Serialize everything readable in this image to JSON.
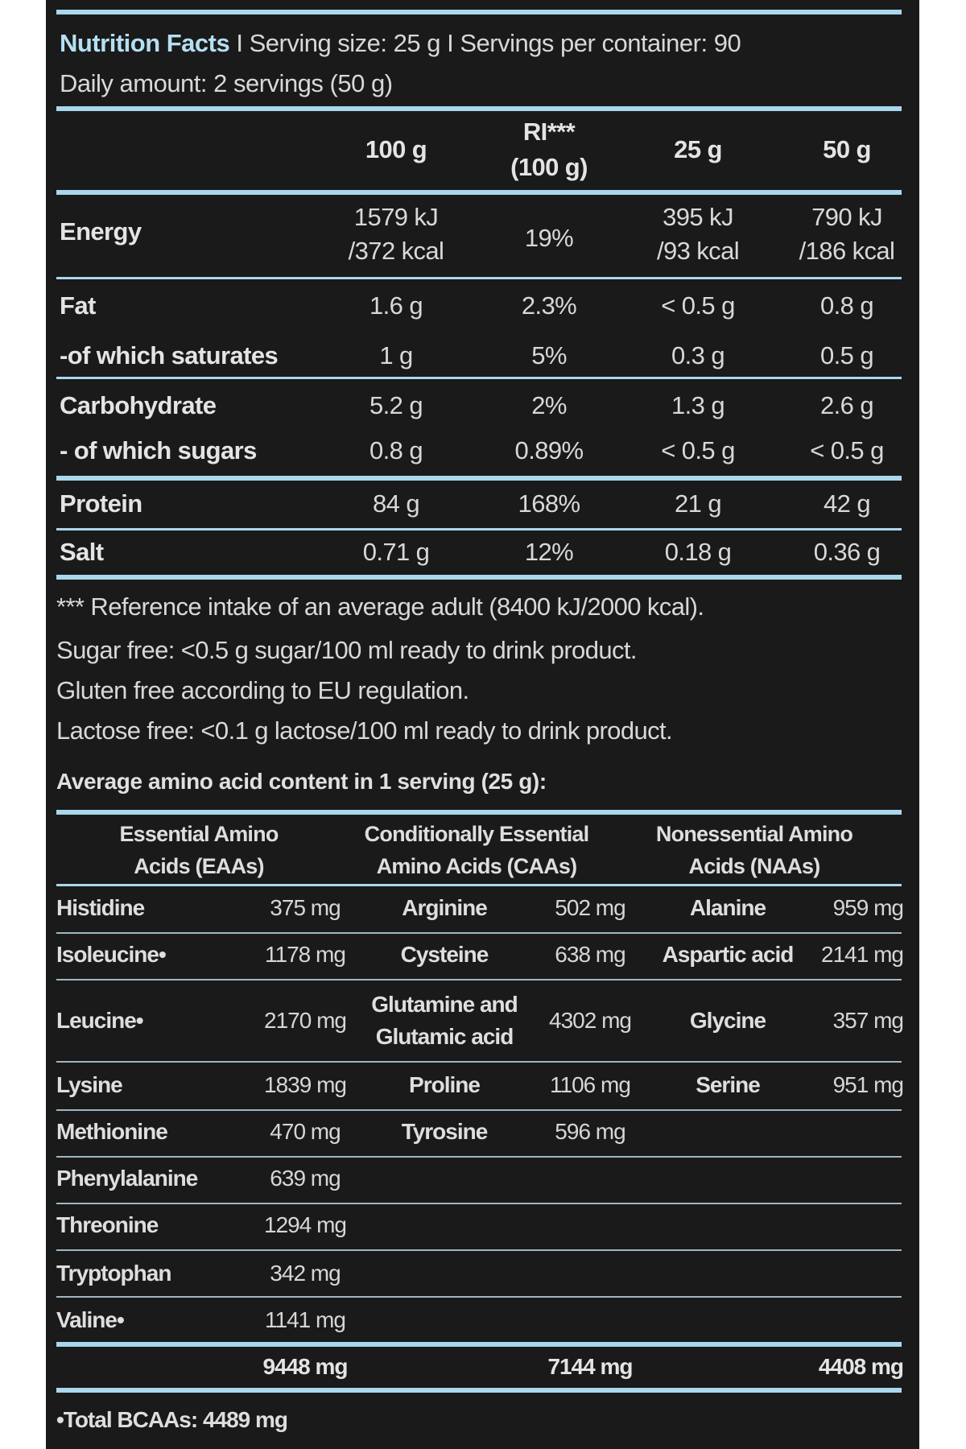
{
  "header": {
    "title": "Nutrition Facts",
    "serving_info": " I Serving size: 25 g I Servings per container: 90",
    "daily_amount": "Daily amount: 2 servings (50 g)"
  },
  "nutrition_table": {
    "columns": [
      "100 g",
      "RI***",
      "(100 g)",
      "25 g",
      "50 g"
    ],
    "rows": [
      {
        "label": "Energy",
        "c100": [
          "1579 kJ",
          "/372 kcal"
        ],
        "ri": "19%",
        "c25": [
          "395 kJ",
          "/93 kcal"
        ],
        "c50": [
          "790 kJ",
          "/186 kcal"
        ]
      },
      {
        "label": "Fat",
        "c100": "1.6 g",
        "ri": "2.3%",
        "c25": "< 0.5 g",
        "c50": "0.8 g"
      },
      {
        "label": "-of which saturates",
        "c100": "1 g",
        "ri": "5%",
        "c25": "0.3 g",
        "c50": "0.5 g"
      },
      {
        "label": "Carbohydrate",
        "c100": "5.2 g",
        "ri": "2%",
        "c25": "1.3 g",
        "c50": "2.6 g"
      },
      {
        "label": "- of which sugars",
        "c100": "0.8 g",
        "ri": "0.89%",
        "c25": "< 0.5 g",
        "c50": "< 0.5 g"
      },
      {
        "label": "Protein",
        "c100": "84 g",
        "ri": "168%",
        "c25": "21 g",
        "c50": "42 g"
      },
      {
        "label": "Salt",
        "c100": "0.71 g",
        "ri": "12%",
        "c25": "0.18 g",
        "c50": "0.36 g"
      }
    ]
  },
  "notes": [
    "*** Reference intake of an average adult (8400 kJ/2000 kcal).",
    "Sugar free: <0.5 g sugar/100 ml ready to drink product.",
    "Gluten free according to EU regulation.",
    "Lactose free: <0.1 g lactose/100 ml ready to drink product."
  ],
  "amino": {
    "title": "Average amino acid content in 1 serving (25 g):",
    "headers": {
      "eaa": [
        "Essential Amino",
        "Acids (EAAs)"
      ],
      "caa": [
        "Conditionally Essential",
        "Amino Acids (CAAs)"
      ],
      "naa": [
        "Nonessential Amino",
        "Acids (NAAs)"
      ]
    },
    "rows": [
      {
        "eaa": [
          "Histidine",
          "375 mg"
        ],
        "caa": [
          "Arginine",
          "502 mg"
        ],
        "naa": [
          "Alanine",
          "959 mg"
        ]
      },
      {
        "eaa": [
          "Isoleucine•",
          "1178 mg"
        ],
        "caa": [
          "Cysteine",
          "638 mg"
        ],
        "naa": [
          "Aspartic acid",
          "2141 mg"
        ]
      },
      {
        "eaa": [
          "Leucine•",
          "2170 mg"
        ],
        "caa": [
          "Glutamine and",
          "Glutamic acid",
          "4302 mg"
        ],
        "naa": [
          "Glycine",
          "357 mg"
        ]
      },
      {
        "eaa": [
          "Lysine",
          "1839 mg"
        ],
        "caa": [
          "Proline",
          "1106 mg"
        ],
        "naa": [
          "Serine",
          "951 mg"
        ]
      },
      {
        "eaa": [
          "Methionine",
          "470 mg"
        ],
        "caa": [
          "Tyrosine",
          "596 mg"
        ]
      },
      {
        "eaa": [
          "Phenylalanine",
          "639 mg"
        ]
      },
      {
        "eaa": [
          "Threonine",
          "1294 mg"
        ]
      },
      {
        "eaa": [
          "Tryptophan",
          "342 mg"
        ]
      },
      {
        "eaa": [
          "Valine•",
          "1141 mg"
        ]
      }
    ],
    "totals": {
      "eaa": "9448 mg",
      "caa": "7144 mg",
      "naa": "4408 mg"
    },
    "bcaa_total": "•Total BCAAs: 4489 mg"
  },
  "colors": {
    "background": "#1a1a1a",
    "rule": "#a9d7ec",
    "text": "#d8d8d8",
    "page": "#ffffff"
  }
}
